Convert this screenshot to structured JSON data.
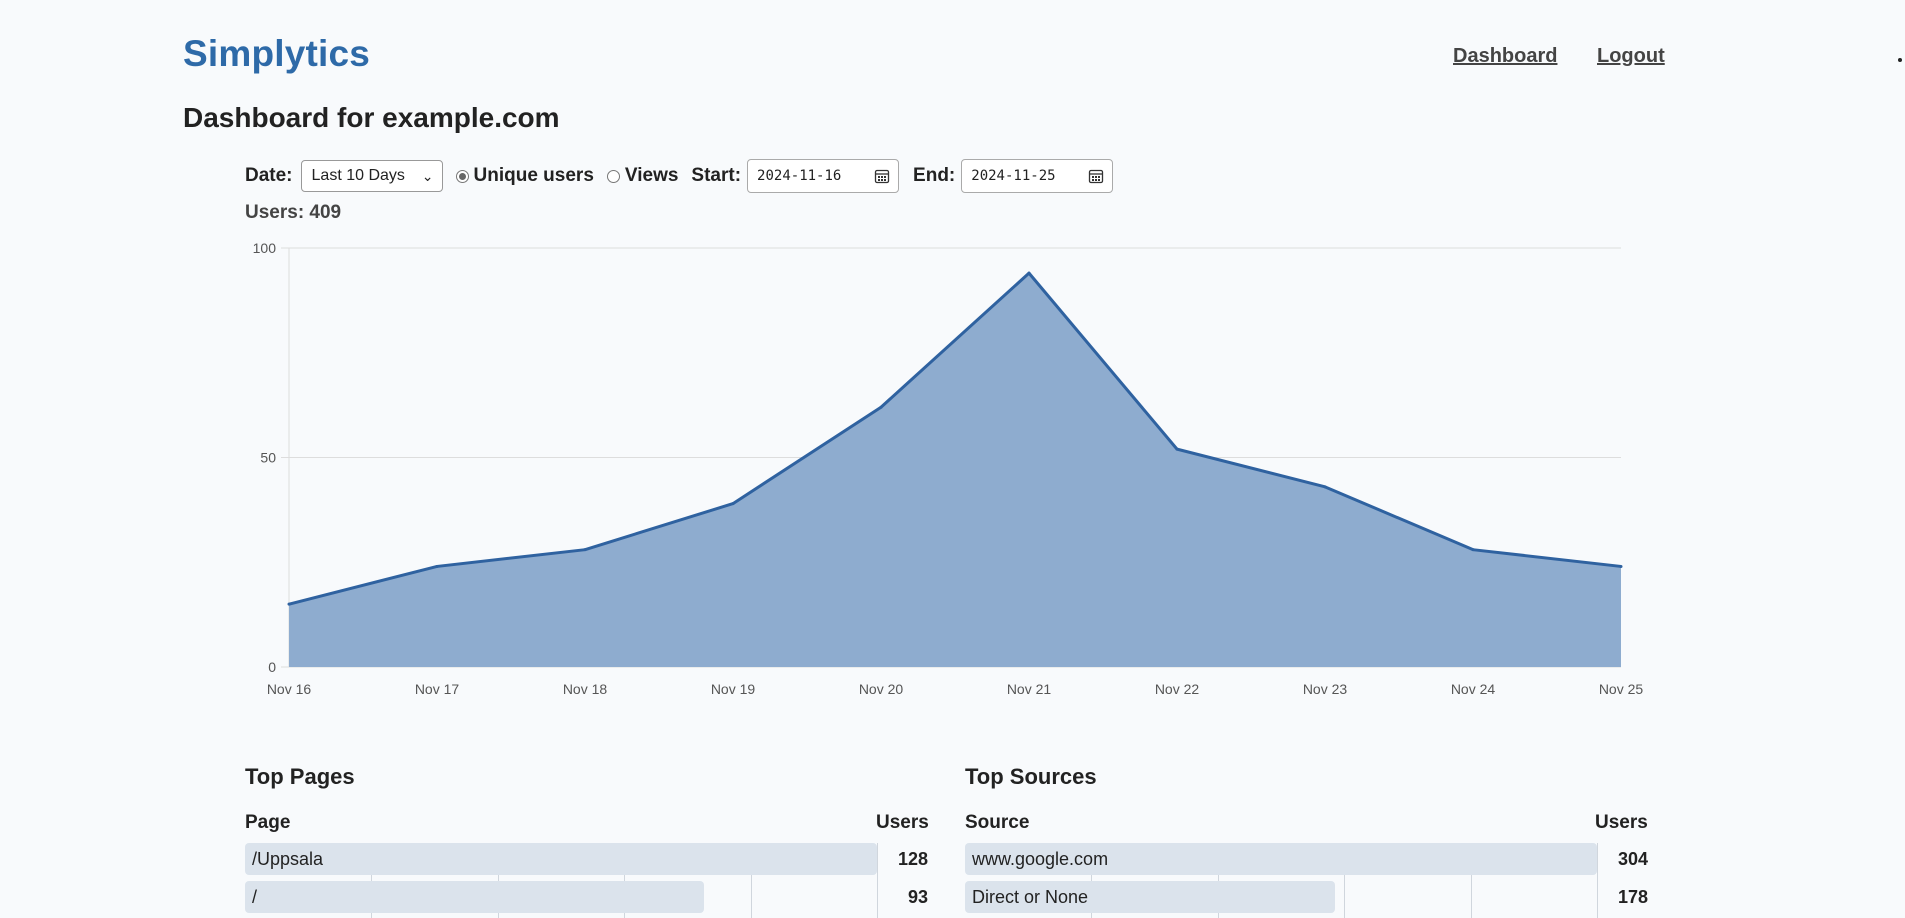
{
  "header": {
    "logo": "Simplytics",
    "nav": [
      {
        "label": "Dashboard"
      },
      {
        "label": "Logout"
      }
    ]
  },
  "page_title": "Dashboard for example.com",
  "controls": {
    "date_label": "Date:",
    "date_range_selected": "Last 10 Days",
    "metric_options": [
      {
        "label": "Unique users",
        "selected": true
      },
      {
        "label": "Views",
        "selected": false
      }
    ],
    "start_label": "Start:",
    "start_value": "2024-11-16",
    "end_label": "End:",
    "end_value": "2024-11-25"
  },
  "users_summary": "Users: 409",
  "chart_data": {
    "type": "area",
    "x": [
      "Nov 16",
      "Nov 17",
      "Nov 18",
      "Nov 19",
      "Nov 20",
      "Nov 21",
      "Nov 22",
      "Nov 23",
      "Nov 24",
      "Nov 25"
    ],
    "series": [
      {
        "values": [
          15,
          24,
          28,
          39,
          62,
          94,
          52,
          43,
          28,
          24
        ]
      }
    ],
    "ylim": [
      0,
      100
    ],
    "yticks": [
      0,
      50,
      100
    ],
    "grid": true,
    "colors": {
      "line": "#2f62a0",
      "fill": "#8eaccf",
      "grid": "#dddddd"
    }
  },
  "top_pages": {
    "title": "Top Pages",
    "col_label": "Page",
    "col_value": "Users",
    "rows": [
      {
        "label": "/Uppsala",
        "value": 128
      },
      {
        "label": "/",
        "value": 93
      }
    ]
  },
  "top_sources": {
    "title": "Top Sources",
    "col_label": "Source",
    "col_value": "Users",
    "rows": [
      {
        "label": "www.google.com",
        "value": 304
      },
      {
        "label": "Direct or None",
        "value": 178
      }
    ]
  },
  "colors": {
    "brand": "#2e6aa8",
    "background": "#f8fafc",
    "row_bar": "#dbe3ec"
  }
}
